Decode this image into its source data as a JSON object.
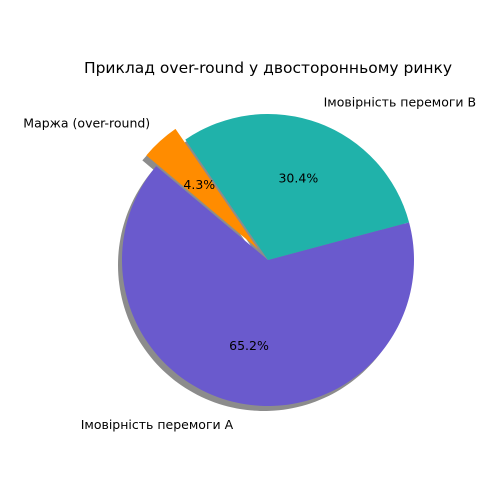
{
  "chart_data": {
    "type": "pie",
    "title": "Приклад over-round у двосторонньому ринку",
    "slices": [
      {
        "label": "Імовірність перемоги A",
        "value": 65.2,
        "pct_label": "65.2%",
        "color": "#6a5acd"
      },
      {
        "label": "Імовірність перемоги B",
        "value": 30.4,
        "pct_label": "30.4%",
        "color": "#20b2aa"
      },
      {
        "label": "Маржа (over-round)",
        "value": 4.3,
        "pct_label": "4.3%",
        "color": "#ff8c00",
        "exploded": true
      }
    ],
    "start_angle_deg": 140,
    "shadow": true
  }
}
